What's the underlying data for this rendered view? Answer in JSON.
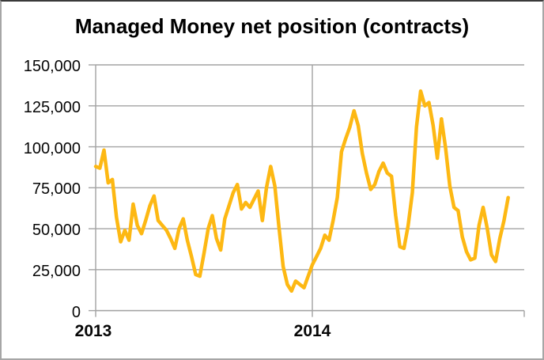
{
  "chart_data": {
    "type": "line",
    "title": "Managed Money net position (contracts)",
    "x_tick_labels": [
      "2013",
      "2014"
    ],
    "y_tick_labels": [
      "150,000",
      "125,000",
      "100,000",
      "75,000",
      "50,000",
      "25,000",
      "0"
    ],
    "ylim": [
      0,
      150000
    ],
    "y_tick_step": 25000,
    "grid": true,
    "legend": false,
    "points_per_year": 52,
    "colors": {
      "line": "#FDB813",
      "grid": "#A3A3A3",
      "axis": "#A3A3A3",
      "text": "#000000",
      "border": "#A6A6A6",
      "background": "#FFFFFF"
    },
    "series": [
      {
        "name": "Managed Money net position (contracts)",
        "values": [
          88000,
          87000,
          98000,
          78000,
          80000,
          57000,
          42000,
          49000,
          43000,
          65000,
          52000,
          47000,
          55000,
          64000,
          70000,
          55000,
          52000,
          49000,
          44000,
          38000,
          50000,
          56000,
          43000,
          33000,
          22000,
          21000,
          35000,
          50000,
          58000,
          44000,
          37000,
          56000,
          64000,
          72000,
          77000,
          62000,
          66000,
          63000,
          68000,
          73000,
          55000,
          75000,
          88000,
          76000,
          51000,
          27000,
          16000,
          12000,
          18000,
          16000,
          14000,
          21000,
          28000,
          33000,
          38000,
          46000,
          43000,
          55000,
          69000,
          97000,
          105000,
          112000,
          122000,
          113000,
          96000,
          84000,
          74000,
          77000,
          85000,
          90000,
          84000,
          82000,
          58000,
          39000,
          38000,
          52000,
          72000,
          112000,
          134000,
          125000,
          127000,
          113000,
          93000,
          117000,
          99000,
          76000,
          63000,
          61000,
          45000,
          36000,
          31000,
          32000,
          52000,
          63000,
          50000,
          34000,
          30000,
          44000,
          55000,
          69000
        ]
      }
    ]
  }
}
